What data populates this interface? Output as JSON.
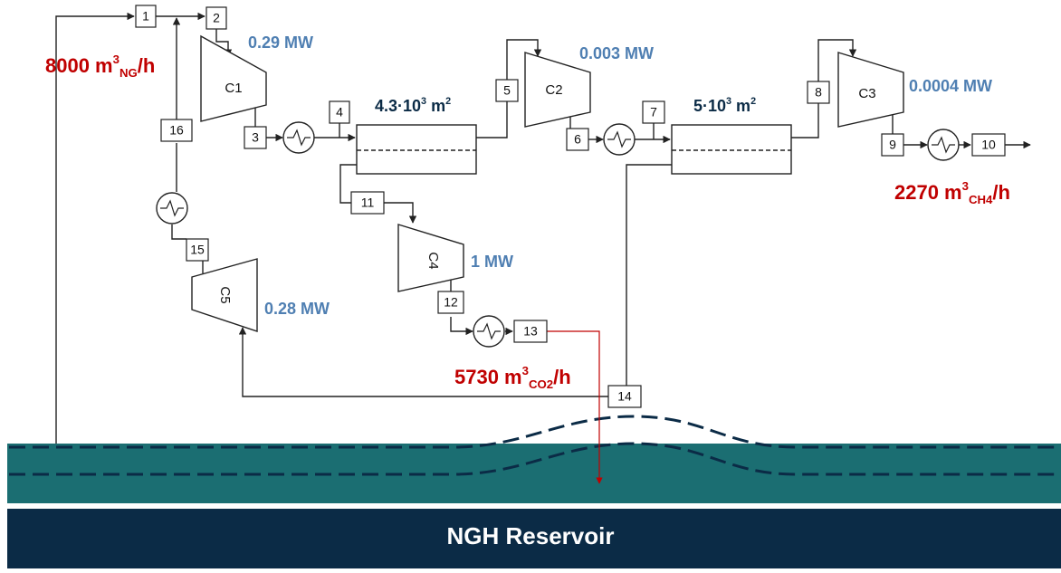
{
  "streams": [
    "1",
    "2",
    "3",
    "4",
    "5",
    "6",
    "7",
    "8",
    "9",
    "10",
    "11",
    "12",
    "13",
    "14",
    "15",
    "16"
  ],
  "compressors": [
    "C1",
    "C2",
    "C3",
    "C4",
    "C5"
  ],
  "powers": [
    "0.29 MW",
    "0.003 MW",
    "0.0004 MW",
    "1 MW",
    "0.28 MW"
  ],
  "areas": [
    [
      {
        "t": "4.3·10"
      },
      {
        "t": "3",
        "s": "sup"
      },
      {
        "t": " m"
      },
      {
        "t": "2",
        "s": "sup"
      }
    ],
    [
      {
        "t": "5·10"
      },
      {
        "t": "3",
        "s": "sup"
      },
      {
        "t": " m"
      },
      {
        "t": "2",
        "s": "sup"
      }
    ]
  ],
  "flows": [
    [
      {
        "t": "8000 m"
      },
      {
        "t": "3",
        "s": "sup"
      },
      {
        "t": "NG",
        "s": "sub"
      },
      {
        "t": "/h"
      }
    ],
    [
      {
        "t": "2270 m"
      },
      {
        "t": "3",
        "s": "sup"
      },
      {
        "t": "CH4",
        "s": "sub"
      },
      {
        "t": "/h"
      }
    ],
    [
      {
        "t": "5730 m"
      },
      {
        "t": "3",
        "s": "sup"
      },
      {
        "t": "CO2",
        "s": "sub"
      },
      {
        "t": "/h"
      }
    ]
  ],
  "reservoir": "NGH Reservoir"
}
